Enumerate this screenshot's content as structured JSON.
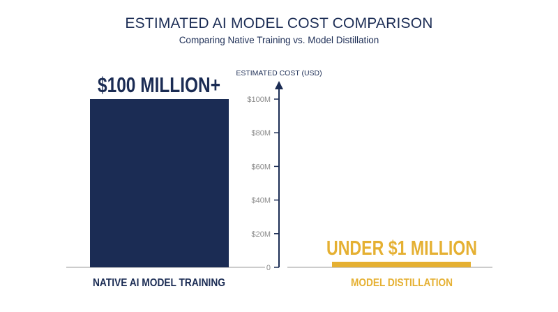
{
  "colors": {
    "navy": "#1b2c54",
    "gold": "#e5b032",
    "axis": "#1b2c54",
    "tick_label": "#8a8a8a",
    "baseline": "#9a9a9a"
  },
  "chart_data": {
    "type": "bar",
    "title": "ESTIMATED AI MODEL COST COMPARISON",
    "subtitle": "Comparing Native Training vs. Model Distillation",
    "ylabel": "ESTIMATED COST (USD)",
    "ylim": [
      0,
      100
    ],
    "y_unit": "million USD",
    "yticks": [
      0,
      20,
      40,
      60,
      80,
      100
    ],
    "ytick_labels": [
      "0",
      "$20M",
      "$40M",
      "$60M",
      "$80M",
      "$100M"
    ],
    "categories": [
      "NATIVE AI MODEL TRAINING",
      "MODEL DISTILLATION"
    ],
    "values": [
      100,
      1
    ],
    "bar_colors": [
      "#1b2c54",
      "#e5b032"
    ],
    "data_labels": [
      "$100 MILLION+",
      "UNDER $1 MILLION"
    ],
    "grid": false,
    "legend": "none"
  }
}
